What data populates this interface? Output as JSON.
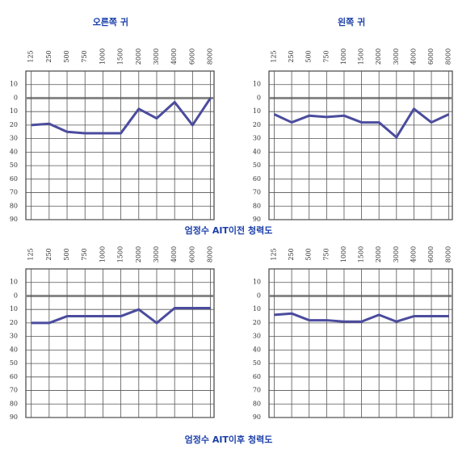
{
  "chart_data": [
    {
      "type": "line",
      "title": "오른쪽 귀",
      "categories": [
        "125",
        "250",
        "500",
        "750",
        "1000",
        "1500",
        "2000",
        "3000",
        "4000",
        "6000",
        "8000"
      ],
      "series": [
        {
          "color": "#4b4c9e",
          "values": [
            20,
            19,
            25,
            26,
            26,
            26,
            8,
            15,
            3,
            20,
            0
          ]
        }
      ],
      "ylim": [
        -20,
        90
      ],
      "y_inverted": true,
      "grid": true,
      "yticks": [
        {
          "value": -10,
          "label": "10"
        },
        0,
        10,
        20,
        30,
        40,
        50,
        60,
        70,
        80,
        90
      ]
    },
    {
      "type": "line",
      "title": "왼쪽 귀",
      "categories": [
        "125",
        "250",
        "500",
        "750",
        "1000",
        "1500",
        "2000",
        "3000",
        "4000",
        "6000",
        "8000"
      ],
      "series": [
        {
          "color": "#4b4c9e",
          "values": [
            12,
            18,
            13,
            14,
            13,
            18,
            18,
            29,
            8,
            18,
            12
          ]
        }
      ],
      "ylim": [
        -20,
        90
      ],
      "y_inverted": true,
      "grid": true,
      "yticks": [
        {
          "value": -10,
          "label": "10"
        },
        0,
        10,
        20,
        30,
        40,
        50,
        60,
        70,
        80,
        90
      ]
    },
    {
      "type": "line",
      "categories": [
        "125",
        "250",
        "500",
        "750",
        "1000",
        "1500",
        "2000",
        "3000",
        "4000",
        "6000",
        "8000"
      ],
      "series": [
        {
          "color": "#4b4c9e",
          "values": [
            20,
            20,
            15,
            15,
            15,
            15,
            10,
            20,
            9,
            9,
            9
          ]
        }
      ],
      "ylim": [
        -20,
        90
      ],
      "y_inverted": true,
      "grid": true,
      "yticks": [
        {
          "value": -10,
          "label": "10"
        },
        0,
        10,
        20,
        30,
        40,
        50,
        60,
        70,
        80,
        90
      ]
    },
    {
      "type": "line",
      "categories": [
        "125",
        "250",
        "500",
        "750",
        "1000",
        "1500",
        "2000",
        "3000",
        "4000",
        "6000",
        "8000"
      ],
      "series": [
        {
          "color": "#4b4c9e",
          "values": [
            14,
            13,
            18,
            18,
            19,
            19,
            14,
            19,
            15,
            15,
            15
          ]
        }
      ],
      "ylim": [
        -20,
        90
      ],
      "y_inverted": true,
      "grid": true,
      "yticks": [
        {
          "value": -10,
          "label": "10"
        },
        0,
        10,
        20,
        30,
        40,
        50,
        60,
        70,
        80,
        90
      ]
    }
  ],
  "captions": [
    "엄정수 AIT이전 청력도",
    "엄정수 AIT이후 청력도"
  ]
}
